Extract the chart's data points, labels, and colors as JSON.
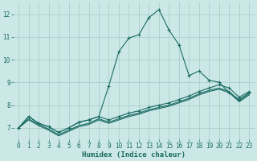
{
  "xlabel": "Humidex (Indice chaleur)",
  "x_values": [
    0,
    1,
    2,
    3,
    4,
    5,
    6,
    7,
    8,
    9,
    10,
    11,
    12,
    13,
    14,
    15,
    16,
    17,
    18,
    19,
    20,
    21,
    22,
    23
  ],
  "line_spike_y": [
    7.0,
    7.5,
    7.2,
    7.05,
    6.8,
    7.0,
    7.25,
    7.35,
    7.5,
    8.85,
    10.35,
    10.95,
    11.1,
    11.85,
    12.2,
    11.3,
    10.65,
    9.3,
    9.5,
    9.1,
    9.0,
    8.55,
    8.25,
    8.55
  ],
  "line_upper_y": [
    7.0,
    7.5,
    7.2,
    7.05,
    6.8,
    7.0,
    7.25,
    7.35,
    7.5,
    7.35,
    7.5,
    7.65,
    7.75,
    7.9,
    8.0,
    8.1,
    8.25,
    8.4,
    8.6,
    8.75,
    8.9,
    8.75,
    8.35,
    8.6
  ],
  "line_mid_y": [
    7.0,
    7.4,
    7.15,
    6.95,
    6.7,
    6.9,
    7.1,
    7.2,
    7.4,
    7.25,
    7.4,
    7.55,
    7.65,
    7.8,
    7.9,
    8.0,
    8.15,
    8.3,
    8.5,
    8.65,
    8.75,
    8.6,
    8.2,
    8.5
  ],
  "line_lower_y": [
    7.0,
    7.35,
    7.1,
    6.9,
    6.65,
    6.85,
    7.05,
    7.15,
    7.35,
    7.2,
    7.35,
    7.5,
    7.6,
    7.75,
    7.85,
    7.95,
    8.1,
    8.25,
    8.45,
    8.6,
    8.7,
    8.55,
    8.15,
    8.45
  ],
  "bg_color": "#cce8e6",
  "grid_color": "#aacfcc",
  "line_color": "#1a6b63",
  "ylim": [
    6.5,
    12.5
  ],
  "yticks": [
    7,
    8,
    9,
    10,
    11,
    12
  ],
  "xlim": [
    -0.5,
    23.5
  ],
  "xticks": [
    0,
    1,
    2,
    3,
    4,
    5,
    6,
    7,
    8,
    9,
    10,
    11,
    12,
    13,
    14,
    15,
    16,
    17,
    18,
    19,
    20,
    21,
    22,
    23
  ]
}
